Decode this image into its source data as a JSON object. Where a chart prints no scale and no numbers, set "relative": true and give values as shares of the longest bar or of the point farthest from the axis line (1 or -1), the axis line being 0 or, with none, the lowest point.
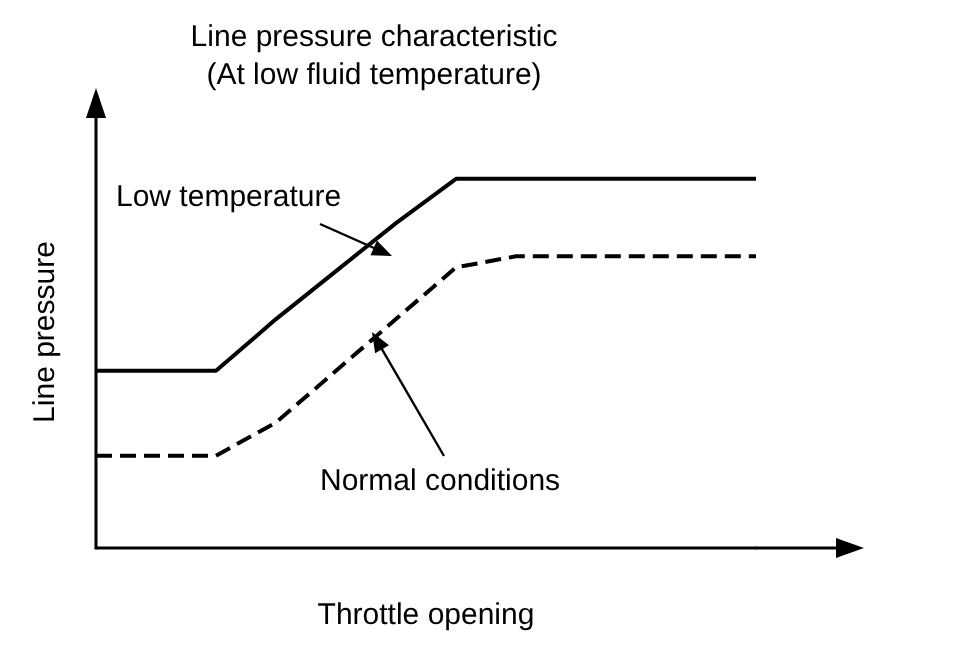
{
  "chart_data": {
    "type": "line",
    "title": "Line pressure characteristic",
    "subtitle": "(At low fluid temperature)",
    "xlabel": "Throttle opening",
    "ylabel": "Line pressure",
    "relative": true,
    "grid": false,
    "legend": false,
    "categories": [
      null,
      null,
      null,
      null,
      null,
      null,
      null,
      null,
      null,
      null,
      null,
      null
    ],
    "series": [
      {
        "name": "Low temperature",
        "color": "#000000",
        "line_style": "solid",
        "values": [
          0.48,
          0.48,
          0.48,
          0.62,
          0.75,
          0.88,
          1,
          1,
          1,
          1,
          1,
          1
        ]
      },
      {
        "name": "Normal conditions",
        "color": "#000000",
        "line_style": "dashed",
        "values": [
          0.25,
          0.25,
          0.25,
          0.34,
          0.48,
          0.62,
          0.76,
          0.79,
          0.79,
          0.79,
          0.79,
          0.79
        ]
      }
    ]
  }
}
